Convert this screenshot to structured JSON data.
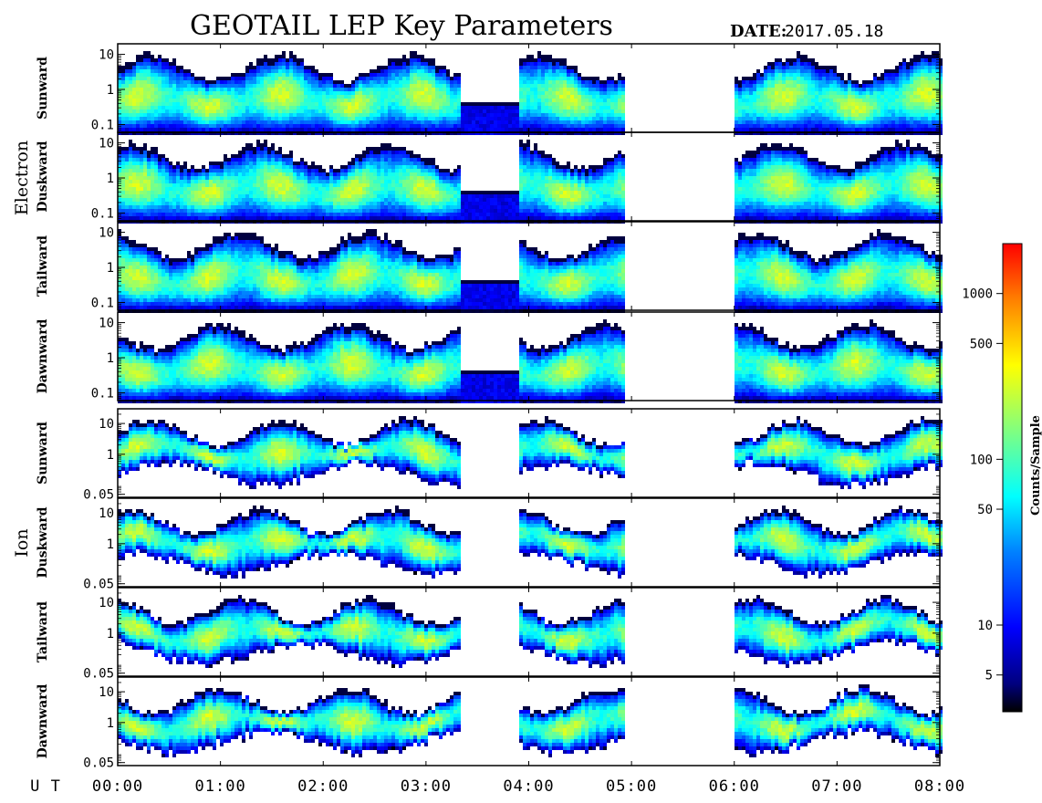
{
  "chart_data": {
    "type": "heatmap",
    "title": "GEOTAIL LEP Key Parameters",
    "date_label": "DATE:",
    "date_value": "2017.05.18",
    "x_label": "U T",
    "x_range_hours": [
      0,
      8
    ],
    "x_ticks": [
      {
        "label": "00:00",
        "hours": 0
      },
      {
        "label": "01:00",
        "hours": 1
      },
      {
        "label": "02:00",
        "hours": 2
      },
      {
        "label": "03:00",
        "hours": 3
      },
      {
        "label": "04:00",
        "hours": 4
      },
      {
        "label": "05:00",
        "hours": 5
      },
      {
        "label": "06:00",
        "hours": 6
      },
      {
        "label": "07:00",
        "hours": 7
      },
      {
        "label": "08:00",
        "hours": 8
      }
    ],
    "scale": "log",
    "colorbar": {
      "label": "Counts/Sample",
      "range": [
        3,
        2000
      ],
      "ticks": [
        {
          "label": "5",
          "value": 5
        },
        {
          "label": "10",
          "value": 10
        },
        {
          "label": "50",
          "value": 50
        },
        {
          "label": "100",
          "value": 100
        },
        {
          "label": "500",
          "value": 500
        },
        {
          "label": "1000",
          "value": 1000
        }
      ]
    },
    "groups": [
      {
        "label": "Electron",
        "y_range": [
          0.06,
          20
        ],
        "y_ticks": [
          {
            "label": "10",
            "value": 10
          },
          {
            "label": "1",
            "value": 1
          },
          {
            "label": "0.1",
            "value": 0.1
          }
        ],
        "panels": [
          {
            "name": "Sunward"
          },
          {
            "name": "Duskward"
          },
          {
            "name": "Tailward"
          },
          {
            "name": "Dawnward"
          }
        ]
      },
      {
        "label": "Ion",
        "y_range": [
          0.04,
          30
        ],
        "y_ticks": [
          {
            "label": "10",
            "value": 10
          },
          {
            "label": "1",
            "value": 1
          },
          {
            "label": "0.05",
            "value": 0.05
          }
        ],
        "panels": [
          {
            "name": "Sunward"
          },
          {
            "name": "Duskward"
          },
          {
            "name": "Tailward"
          },
          {
            "name": "Dawnward"
          }
        ]
      }
    ],
    "data_gaps_hours": [
      {
        "group": "Electron",
        "from": 4.93,
        "to": 6.0
      },
      {
        "group": "Ion",
        "from": 3.33,
        "to": 3.9
      },
      {
        "group": "Ion",
        "from": 4.93,
        "to": 6.0
      }
    ]
  }
}
